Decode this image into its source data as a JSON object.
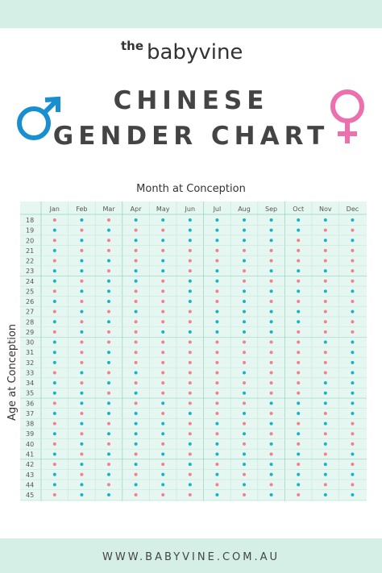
{
  "header": {
    "brand_small": "the",
    "brand": "babyvine",
    "title_line1": "CHINESE",
    "title_line2": "GENDER CHART"
  },
  "table": {
    "x_label": "Month at Conception",
    "y_label": "Age at Conception",
    "palette": {
      "B": "#18b3c6",
      "G": "#f2808f"
    },
    "months": [
      "Jan",
      "Feb",
      "Mar",
      "Apr",
      "May",
      "Jun",
      "Jul",
      "Aug",
      "Sep",
      "Oct",
      "Nov",
      "Dec"
    ],
    "rows": [
      {
        "age": "18",
        "cells": [
          "G",
          "B",
          "G",
          "B",
          "B",
          "B",
          "B",
          "B",
          "B",
          "B",
          "B",
          "B"
        ]
      },
      {
        "age": "19",
        "cells": [
          "B",
          "G",
          "B",
          "G",
          "G",
          "B",
          "B",
          "B",
          "B",
          "B",
          "G",
          "G"
        ]
      },
      {
        "age": "20",
        "cells": [
          "G",
          "B",
          "G",
          "B",
          "B",
          "B",
          "B",
          "B",
          "B",
          "G",
          "B",
          "B"
        ]
      },
      {
        "age": "21",
        "cells": [
          "B",
          "G",
          "G",
          "G",
          "G",
          "G",
          "G",
          "G",
          "G",
          "G",
          "G",
          "G"
        ]
      },
      {
        "age": "22",
        "cells": [
          "G",
          "B",
          "B",
          "G",
          "B",
          "G",
          "G",
          "B",
          "G",
          "G",
          "G",
          "G"
        ]
      },
      {
        "age": "23",
        "cells": [
          "B",
          "B",
          "G",
          "B",
          "B",
          "G",
          "B",
          "G",
          "B",
          "B",
          "B",
          "G"
        ]
      },
      {
        "age": "24",
        "cells": [
          "B",
          "G",
          "B",
          "B",
          "G",
          "B",
          "B",
          "G",
          "G",
          "G",
          "G",
          "G"
        ]
      },
      {
        "age": "25",
        "cells": [
          "G",
          "B",
          "B",
          "G",
          "G",
          "B",
          "G",
          "B",
          "B",
          "B",
          "B",
          "B"
        ]
      },
      {
        "age": "26",
        "cells": [
          "B",
          "G",
          "B",
          "G",
          "G",
          "B",
          "G",
          "B",
          "G",
          "G",
          "G",
          "G"
        ]
      },
      {
        "age": "27",
        "cells": [
          "G",
          "B",
          "G",
          "B",
          "G",
          "G",
          "B",
          "B",
          "B",
          "B",
          "G",
          "B"
        ]
      },
      {
        "age": "28",
        "cells": [
          "B",
          "G",
          "B",
          "G",
          "G",
          "G",
          "B",
          "B",
          "B",
          "B",
          "G",
          "G"
        ]
      },
      {
        "age": "29",
        "cells": [
          "G",
          "B",
          "G",
          "G",
          "B",
          "B",
          "B",
          "B",
          "B",
          "G",
          "G",
          "G"
        ]
      },
      {
        "age": "30",
        "cells": [
          "B",
          "G",
          "G",
          "G",
          "G",
          "G",
          "G",
          "G",
          "G",
          "G",
          "B",
          "B"
        ]
      },
      {
        "age": "31",
        "cells": [
          "B",
          "G",
          "B",
          "G",
          "G",
          "G",
          "G",
          "G",
          "G",
          "G",
          "G",
          "B"
        ]
      },
      {
        "age": "32",
        "cells": [
          "B",
          "G",
          "B",
          "G",
          "G",
          "G",
          "G",
          "G",
          "G",
          "G",
          "G",
          "B"
        ]
      },
      {
        "age": "33",
        "cells": [
          "G",
          "B",
          "G",
          "B",
          "G",
          "G",
          "G",
          "B",
          "G",
          "G",
          "G",
          "B"
        ]
      },
      {
        "age": "34",
        "cells": [
          "B",
          "G",
          "B",
          "G",
          "G",
          "G",
          "G",
          "G",
          "G",
          "G",
          "B",
          "B"
        ]
      },
      {
        "age": "35",
        "cells": [
          "B",
          "B",
          "G",
          "B",
          "G",
          "G",
          "G",
          "B",
          "G",
          "G",
          "B",
          "B"
        ]
      },
      {
        "age": "36",
        "cells": [
          "G",
          "B",
          "B",
          "G",
          "B",
          "G",
          "G",
          "G",
          "B",
          "B",
          "B",
          "B"
        ]
      },
      {
        "age": "37",
        "cells": [
          "B",
          "G",
          "B",
          "B",
          "G",
          "B",
          "G",
          "B",
          "G",
          "B",
          "G",
          "B"
        ]
      },
      {
        "age": "38",
        "cells": [
          "G",
          "B",
          "G",
          "B",
          "B",
          "G",
          "B",
          "G",
          "B",
          "G",
          "B",
          "G"
        ]
      },
      {
        "age": "39",
        "cells": [
          "B",
          "G",
          "B",
          "B",
          "B",
          "G",
          "G",
          "B",
          "G",
          "B",
          "G",
          "G"
        ]
      },
      {
        "age": "40",
        "cells": [
          "G",
          "B",
          "G",
          "B",
          "G",
          "B",
          "B",
          "G",
          "B",
          "G",
          "B",
          "G"
        ]
      },
      {
        "age": "41",
        "cells": [
          "B",
          "G",
          "B",
          "G",
          "B",
          "G",
          "B",
          "B",
          "G",
          "B",
          "G",
          "B"
        ]
      },
      {
        "age": "42",
        "cells": [
          "G",
          "B",
          "G",
          "B",
          "G",
          "B",
          "G",
          "B",
          "B",
          "G",
          "B",
          "G"
        ]
      },
      {
        "age": "43",
        "cells": [
          "B",
          "G",
          "B",
          "G",
          "B",
          "G",
          "B",
          "G",
          "B",
          "B",
          "B",
          "B"
        ]
      },
      {
        "age": "44",
        "cells": [
          "B",
          "B",
          "G",
          "B",
          "B",
          "B",
          "G",
          "B",
          "G",
          "B",
          "G",
          "G"
        ]
      },
      {
        "age": "45",
        "cells": [
          "G",
          "B",
          "B",
          "G",
          "G",
          "G",
          "B",
          "G",
          "B",
          "G",
          "B",
          "B"
        ]
      }
    ]
  },
  "footer": {
    "url": "WWW.BABYVINE.COM.AU"
  }
}
